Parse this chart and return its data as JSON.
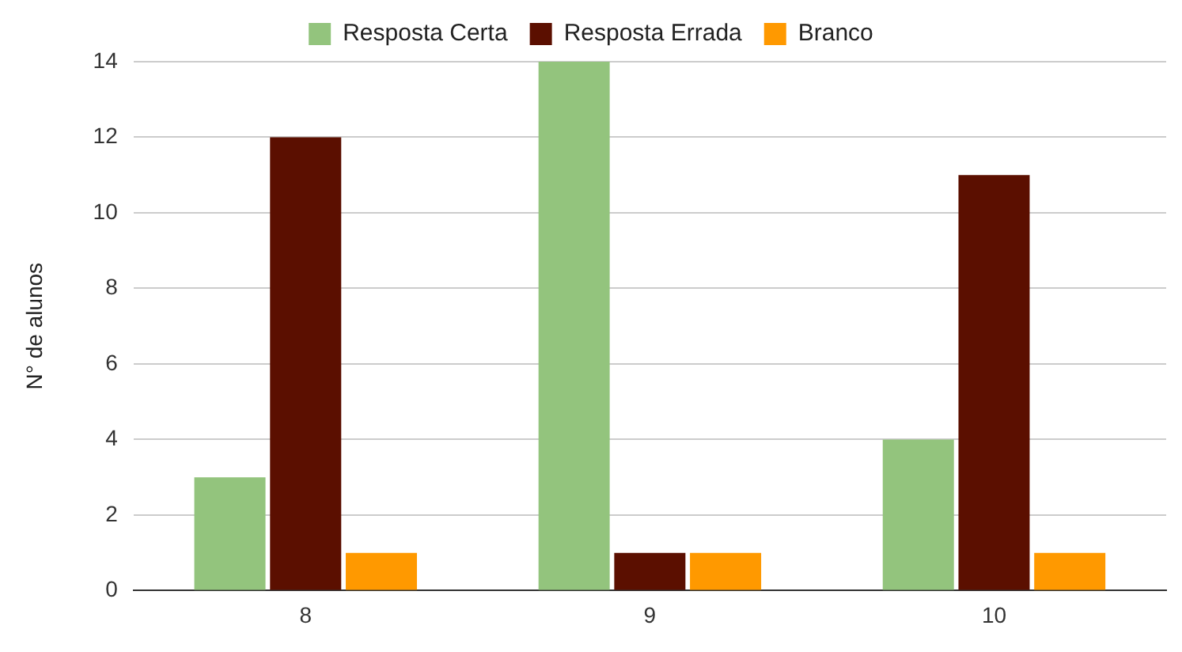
{
  "chart_data": {
    "type": "bar",
    "ylabel": "N° de alunos",
    "categories": [
      "8",
      "9",
      "10"
    ],
    "series": [
      {
        "name": "Resposta Certa",
        "color": "#93c47d",
        "values": [
          3,
          14,
          4
        ]
      },
      {
        "name": "Resposta Errada",
        "color": "#5b0f00",
        "values": [
          12,
          1,
          11
        ]
      },
      {
        "name": "Branco",
        "color": "#ff9900",
        "values": [
          1,
          1,
          1
        ]
      }
    ],
    "ylim": [
      0,
      14
    ],
    "yticks": [
      0,
      2,
      4,
      6,
      8,
      10,
      12,
      14
    ],
    "grid": "y",
    "legend": "top"
  }
}
